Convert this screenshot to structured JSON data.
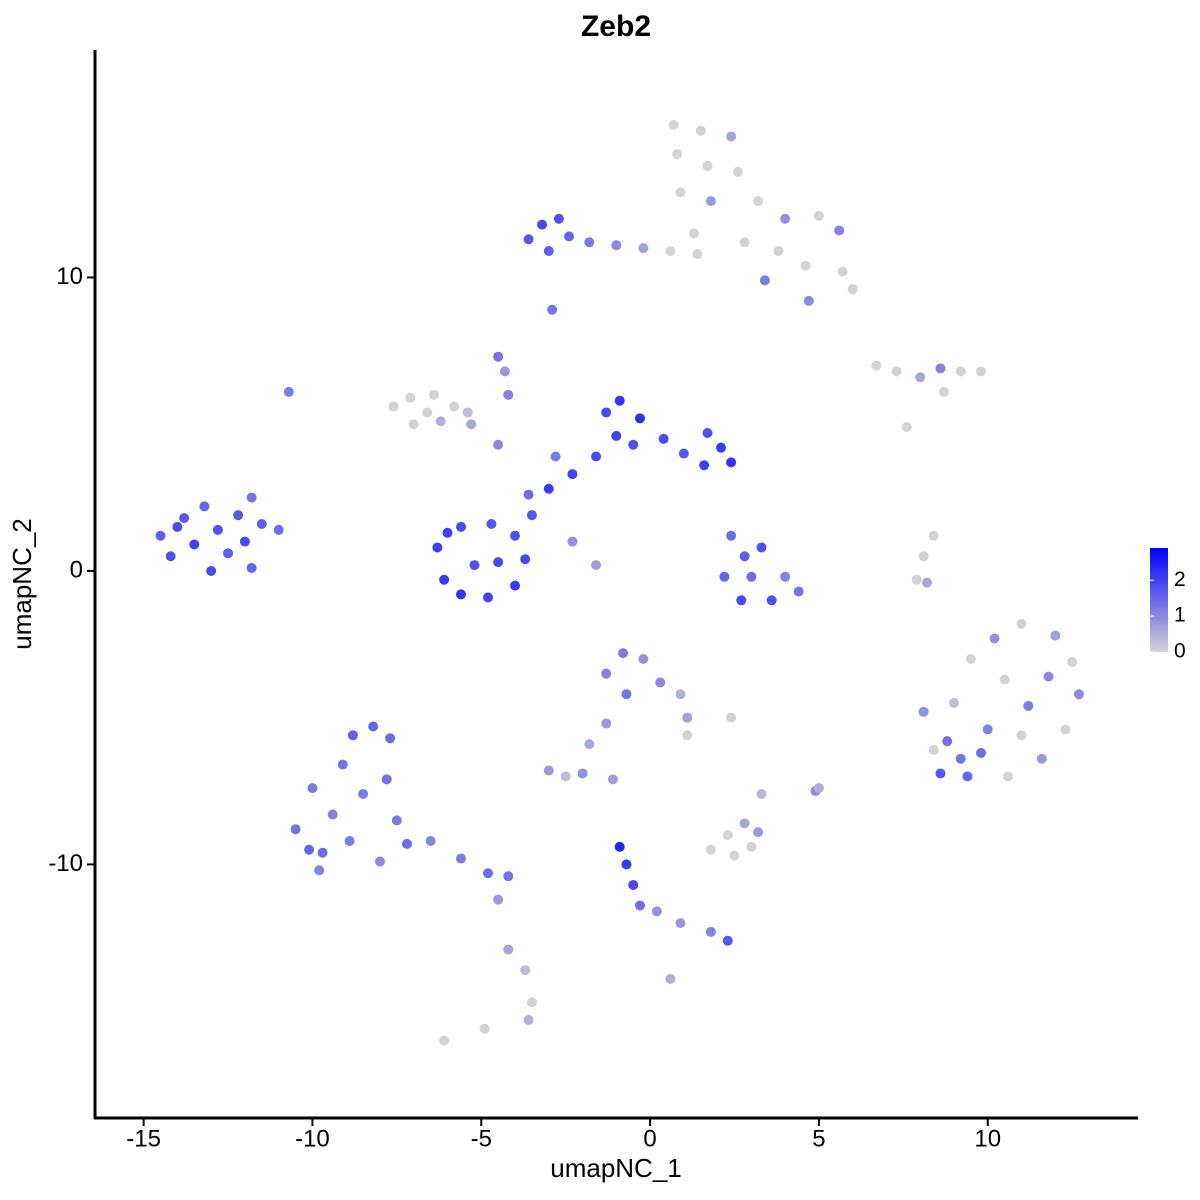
{
  "chart_data": {
    "type": "scatter",
    "title": "Zeb2",
    "x_label": "umapNC_1",
    "y_label": "umapNC_2",
    "xlim": [
      -16.44,
      14.45
    ],
    "ylim": [
      -18.64,
      17.75
    ],
    "xticks": [
      -15,
      -10,
      -5,
      0,
      5,
      10
    ],
    "yticks": [
      -10,
      0,
      10
    ],
    "color_low": "#d3d3d3",
    "color_high": "#0000ff",
    "color_lim": [
      0,
      2.9
    ],
    "color_ticks": [
      0,
      1,
      2
    ],
    "points": [
      [
        -14.5,
        1.2,
        1.6
      ],
      [
        -14.2,
        0.5,
        1.8
      ],
      [
        -13.8,
        1.8,
        1.7
      ],
      [
        -13.5,
        0.9,
        2.0
      ],
      [
        -13.2,
        2.2,
        1.5
      ],
      [
        -13.0,
        0.0,
        1.9
      ],
      [
        -12.8,
        1.4,
        1.8
      ],
      [
        -12.5,
        0.6,
        1.6
      ],
      [
        -12.2,
        1.9,
        1.7
      ],
      [
        -12.0,
        1.0,
        1.9
      ],
      [
        -11.8,
        0.1,
        1.5
      ],
      [
        -11.5,
        1.6,
        1.6
      ],
      [
        -11.8,
        2.5,
        1.3
      ],
      [
        -11.0,
        1.4,
        1.4
      ],
      [
        -14.0,
        1.5,
        1.9
      ],
      [
        -6.3,
        0.8,
        2.0
      ],
      [
        -6.1,
        -0.3,
        2.1
      ],
      [
        -5.6,
        -0.8,
        2.2
      ],
      [
        -4.8,
        -0.9,
        2.0
      ],
      [
        -4.0,
        -0.5,
        2.1
      ],
      [
        -3.7,
        0.4,
        1.9
      ],
      [
        -4.0,
        1.2,
        1.8
      ],
      [
        -4.7,
        1.6,
        1.7
      ],
      [
        -5.6,
        1.5,
        1.9
      ],
      [
        -6.0,
        1.3,
        2.0
      ],
      [
        -5.2,
        0.2,
        1.8
      ],
      [
        -4.5,
        0.3,
        1.9
      ],
      [
        -3.5,
        1.9,
        1.7
      ],
      [
        -3.0,
        2.8,
        2.1
      ],
      [
        -3.6,
        2.6,
        1.4
      ],
      [
        -2.3,
        3.3,
        2.0
      ],
      [
        -1.6,
        3.9,
        1.9
      ],
      [
        -1.0,
        4.6,
        2.0
      ],
      [
        -0.9,
        5.8,
        2.2
      ],
      [
        -0.3,
        5.2,
        2.3
      ],
      [
        -0.5,
        4.3,
        1.8
      ],
      [
        0.4,
        4.5,
        1.9
      ],
      [
        1.0,
        4.0,
        1.7
      ],
      [
        1.6,
        3.6,
        2.0
      ],
      [
        2.1,
        4.2,
        2.1
      ],
      [
        2.4,
        3.7,
        2.2
      ],
      [
        1.7,
        4.7,
        1.8
      ],
      [
        -1.3,
        5.4,
        1.9
      ],
      [
        -2.8,
        3.9,
        1.2
      ],
      [
        -4.5,
        4.3,
        1.0
      ],
      [
        -5.3,
        5.0,
        0.6
      ],
      [
        -4.5,
        7.3,
        1.3
      ],
      [
        -4.2,
        6.0,
        1.1
      ],
      [
        -4.3,
        6.8,
        0.8
      ],
      [
        -2.3,
        1.0,
        0.9
      ],
      [
        -1.6,
        0.2,
        0.7
      ],
      [
        -7.6,
        5.6,
        0
      ],
      [
        -7.1,
        5.9,
        0
      ],
      [
        -6.6,
        5.4,
        0
      ],
      [
        -6.2,
        5.1,
        0.5
      ],
      [
        -5.8,
        5.6,
        0
      ],
      [
        -5.4,
        5.4,
        0.3
      ],
      [
        -7.0,
        5.0,
        0
      ],
      [
        -6.4,
        6.0,
        0
      ],
      [
        -10.7,
        6.1,
        1.2
      ],
      [
        -2.9,
        8.9,
        1.3
      ],
      [
        0.7,
        15.2,
        0
      ],
      [
        1.5,
        15.0,
        0
      ],
      [
        2.4,
        14.8,
        0.6
      ],
      [
        0.8,
        14.2,
        0
      ],
      [
        1.7,
        13.8,
        0
      ],
      [
        2.6,
        13.6,
        0
      ],
      [
        0.9,
        12.9,
        0
      ],
      [
        1.8,
        12.6,
        0.8
      ],
      [
        3.2,
        12.6,
        0
      ],
      [
        4.0,
        12.0,
        0.9
      ],
      [
        5.0,
        12.1,
        0
      ],
      [
        5.6,
        11.6,
        1.1
      ],
      [
        1.3,
        11.5,
        0
      ],
      [
        2.8,
        11.2,
        0
      ],
      [
        3.8,
        10.9,
        0
      ],
      [
        4.6,
        10.4,
        0
      ],
      [
        5.7,
        10.2,
        0
      ],
      [
        4.7,
        9.2,
        1.0
      ],
      [
        6.0,
        9.6,
        0
      ],
      [
        3.4,
        9.9,
        1.2
      ],
      [
        -3.6,
        11.3,
        1.7
      ],
      [
        -3.2,
        11.8,
        1.9
      ],
      [
        -2.7,
        12.0,
        1.8
      ],
      [
        -2.4,
        11.4,
        1.5
      ],
      [
        -3.0,
        10.9,
        1.6
      ],
      [
        -1.8,
        11.2,
        1.2
      ],
      [
        -1.0,
        11.1,
        1.0
      ],
      [
        -0.2,
        11.0,
        0.7
      ],
      [
        0.6,
        10.9,
        0
      ],
      [
        1.4,
        10.8,
        0
      ],
      [
        6.7,
        7.0,
        0
      ],
      [
        7.3,
        6.8,
        0
      ],
      [
        8.0,
        6.6,
        0.6
      ],
      [
        8.6,
        6.9,
        1.1
      ],
      [
        9.2,
        6.8,
        0
      ],
      [
        9.8,
        6.8,
        0
      ],
      [
        8.7,
        6.1,
        0
      ],
      [
        7.6,
        4.9,
        0
      ],
      [
        8.4,
        1.2,
        0
      ],
      [
        8.1,
        0.5,
        0
      ],
      [
        7.9,
        -0.3,
        0
      ],
      [
        8.2,
        -0.4,
        0.6
      ],
      [
        2.4,
        1.2,
        1.4
      ],
      [
        2.8,
        0.5,
        1.6
      ],
      [
        3.3,
        0.8,
        1.8
      ],
      [
        3.0,
        -0.2,
        1.4
      ],
      [
        2.2,
        -0.2,
        1.5
      ],
      [
        2.7,
        -1.0,
        1.9
      ],
      [
        3.6,
        -1.0,
        1.8
      ],
      [
        4.4,
        -0.7,
        1.3
      ],
      [
        4.0,
        -0.2,
        1.1
      ],
      [
        9.0,
        -4.5,
        0.3
      ],
      [
        9.5,
        -3.0,
        0
      ],
      [
        10.2,
        -2.3,
        0.9
      ],
      [
        11.0,
        -1.8,
        0
      ],
      [
        12.0,
        -2.2,
        0.7
      ],
      [
        12.5,
        -3.1,
        0
      ],
      [
        12.7,
        -4.2,
        1.0
      ],
      [
        12.3,
        -5.4,
        0
      ],
      [
        11.6,
        -6.4,
        0.8
      ],
      [
        10.6,
        -7.0,
        0
      ],
      [
        9.4,
        -7.0,
        1.5
      ],
      [
        8.6,
        -6.9,
        1.7
      ],
      [
        8.8,
        -5.8,
        1.3
      ],
      [
        8.1,
        -4.8,
        0.9
      ],
      [
        10.0,
        -5.4,
        1.1
      ],
      [
        11.2,
        -4.6,
        1.2
      ],
      [
        10.5,
        -3.7,
        0
      ],
      [
        11.8,
        -3.6,
        1.0
      ],
      [
        9.8,
        -6.2,
        1.4
      ],
      [
        11.0,
        -5.6,
        0
      ],
      [
        9.2,
        -6.4,
        1.3
      ],
      [
        8.4,
        -6.1,
        0
      ],
      [
        -1.3,
        -3.5,
        1.1
      ],
      [
        -0.8,
        -2.8,
        1.2
      ],
      [
        -0.2,
        -3.0,
        0.9
      ],
      [
        0.3,
        -3.8,
        1.0
      ],
      [
        -0.7,
        -4.2,
        1.3
      ],
      [
        0.9,
        -4.2,
        0.5
      ],
      [
        1.1,
        -5.0,
        0.7
      ],
      [
        1.1,
        -5.6,
        0
      ],
      [
        -1.3,
        -5.2,
        0.8
      ],
      [
        -1.8,
        -5.9,
        0.6
      ],
      [
        -3.0,
        -6.8,
        0.8
      ],
      [
        -2.5,
        -7.0,
        0.3
      ],
      [
        -2.0,
        -6.9,
        0.9
      ],
      [
        -1.1,
        -7.1,
        0.7
      ],
      [
        2.4,
        -5.0,
        0
      ],
      [
        4.9,
        -7.5,
        1.0
      ],
      [
        5.0,
        -7.4,
        0.5
      ],
      [
        3.3,
        -7.6,
        0.4
      ],
      [
        -10.5,
        -8.8,
        1.3
      ],
      [
        -10.0,
        -7.4,
        1.2
      ],
      [
        -9.7,
        -9.6,
        1.4
      ],
      [
        -9.4,
        -8.3,
        1.1
      ],
      [
        -9.1,
        -6.6,
        1.3
      ],
      [
        -8.8,
        -5.6,
        1.6
      ],
      [
        -8.2,
        -5.3,
        1.5
      ],
      [
        -7.7,
        -5.7,
        1.4
      ],
      [
        -8.5,
        -7.6,
        1.2
      ],
      [
        -7.8,
        -7.1,
        1.3
      ],
      [
        -8.9,
        -9.2,
        1.2
      ],
      [
        -8.0,
        -9.9,
        1.0
      ],
      [
        -7.5,
        -8.5,
        1.2
      ],
      [
        -7.2,
        -9.3,
        1.4
      ],
      [
        -6.5,
        -9.2,
        1.1
      ],
      [
        -5.6,
        -9.8,
        1.2
      ],
      [
        -4.8,
        -10.3,
        1.4
      ],
      [
        -4.2,
        -10.4,
        1.3
      ],
      [
        -9.8,
        -10.2,
        1.1
      ],
      [
        -10.1,
        -9.5,
        1.5
      ],
      [
        -4.5,
        -11.2,
        0.8
      ],
      [
        -4.2,
        -12.9,
        0.6
      ],
      [
        -3.7,
        -13.6,
        0.3
      ],
      [
        -3.5,
        -14.7,
        0
      ],
      [
        -3.6,
        -15.3,
        0.5
      ],
      [
        -4.9,
        -15.6,
        0
      ],
      [
        -6.1,
        -16.0,
        0
      ],
      [
        -0.9,
        -9.4,
        2.4
      ],
      [
        -0.7,
        -10.0,
        2.1
      ],
      [
        -0.5,
        -10.7,
        1.9
      ],
      [
        -0.3,
        -11.4,
        1.4
      ],
      [
        0.2,
        -11.6,
        0.9
      ],
      [
        0.9,
        -12.0,
        0.8
      ],
      [
        1.8,
        -12.3,
        1.1
      ],
      [
        2.3,
        -12.6,
        1.7
      ],
      [
        0.6,
        -13.9,
        0.5
      ],
      [
        1.8,
        -9.5,
        0
      ],
      [
        2.3,
        -9.0,
        0
      ],
      [
        2.8,
        -8.6,
        0.6
      ],
      [
        3.0,
        -9.4,
        0
      ],
      [
        3.2,
        -8.9,
        0.8
      ],
      [
        2.5,
        -9.7,
        0
      ]
    ]
  }
}
